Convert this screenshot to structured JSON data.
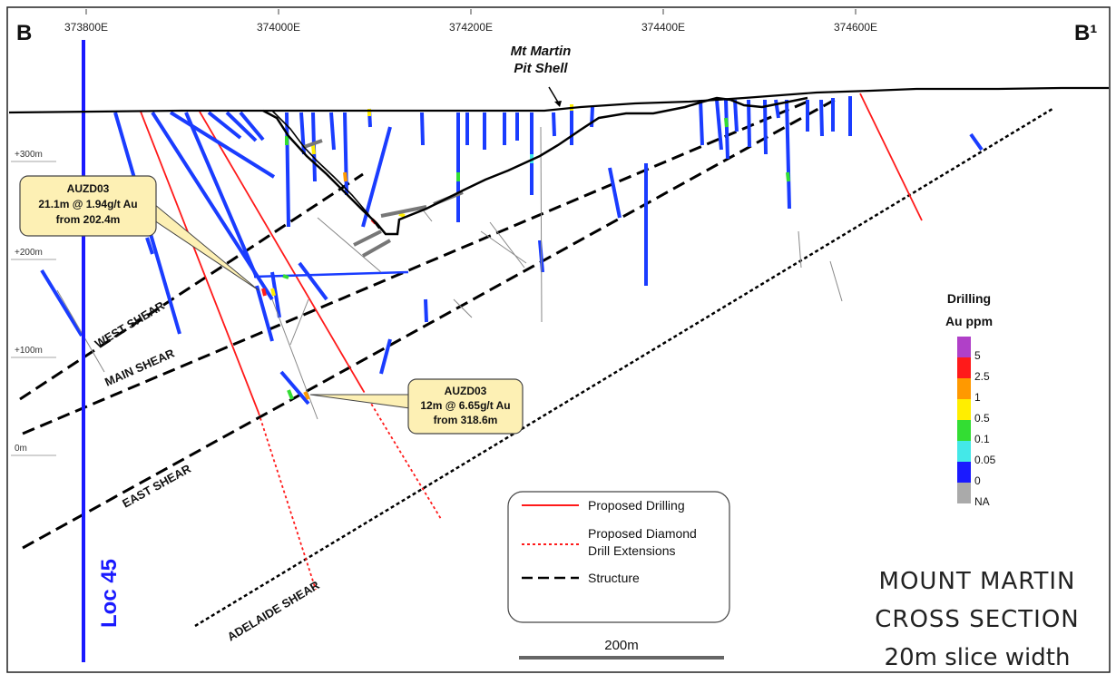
{
  "section": {
    "start_label": "B",
    "end_label": "B¹",
    "pit_label_line1": "Mt Martin",
    "pit_label_line2": "Pit Shell",
    "loc_label": "Loc 45"
  },
  "eastings": [
    "373800E",
    "374000E",
    "374200E",
    "374400E",
    "374600E"
  ],
  "elevations": [
    "+300m",
    "+200m",
    "+100m",
    "0m"
  ],
  "structures": [
    "WEST SHEAR",
    "MAIN SHEAR",
    "EAST SHEAR",
    "ADELAIDE SHEAR"
  ],
  "callouts": [
    {
      "line1": "AUZD03",
      "line2": "21.1m @ 1.94g/t Au",
      "line3": "from 202.4m"
    },
    {
      "line1": "AUZD03",
      "line2": "12m @ 6.65g/t Au",
      "line3": "from 318.6m"
    }
  ],
  "legend": {
    "proposed_drilling": "Proposed Drilling",
    "diamond_line1": "Proposed Diamond",
    "diamond_line2": "Drill Extensions",
    "structure": "Structure"
  },
  "grade_legend": {
    "title_line1": "Drilling",
    "title_line2": "Au ppm",
    "colors": [
      "#b040c8",
      "#ff1a1a",
      "#ff9900",
      "#ffee00",
      "#33dd33",
      "#44e8e8",
      "#1a1aff",
      "#aaaaaa"
    ],
    "labels": [
      "5",
      "2.5",
      "1",
      "0.5",
      "0.1",
      "0.05",
      "0",
      "NA"
    ]
  },
  "scale_bar": "200m",
  "title": {
    "line1": "MOUNT MARTIN",
    "line2": "CROSS SECTION",
    "line3": "20m slice width"
  },
  "colors": {
    "proposed": "#ff1a1a",
    "loc": "#1a1aff",
    "drill": "#1a3cff",
    "callout_fill": "#fdf0b4"
  }
}
